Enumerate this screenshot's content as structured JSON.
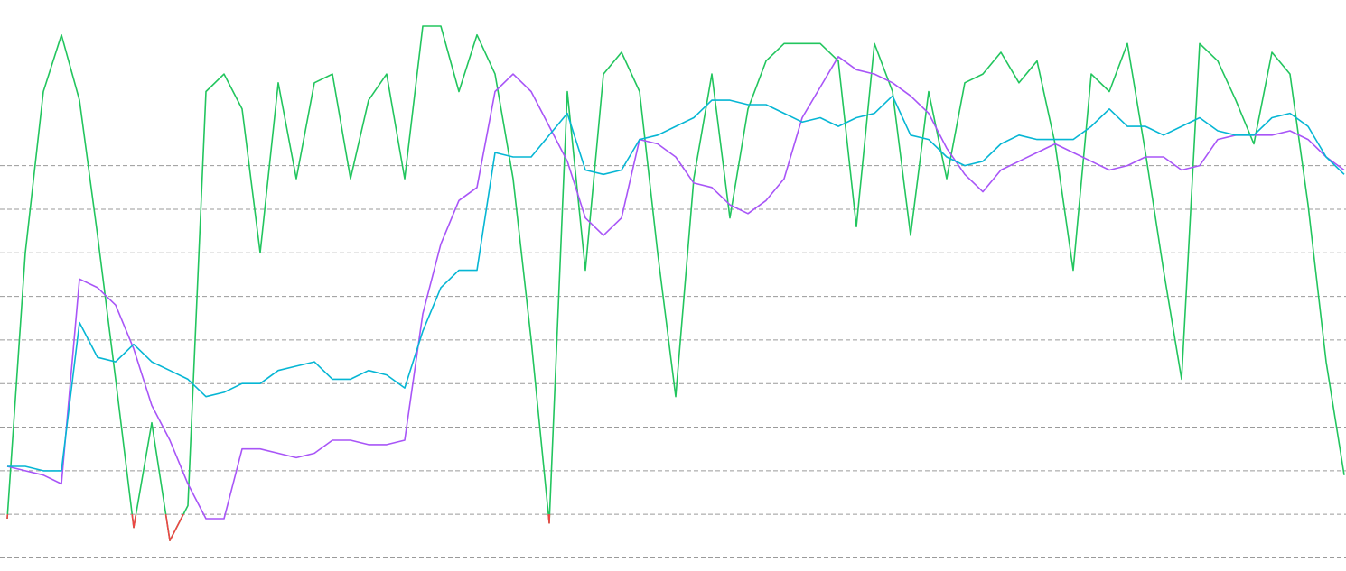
{
  "chart_data": {
    "type": "line",
    "x": [
      0,
      1,
      2,
      3,
      4,
      5,
      6,
      7,
      8,
      9,
      10,
      11,
      12,
      13,
      14,
      15,
      16,
      17,
      18,
      19,
      20,
      21,
      22,
      23,
      24,
      25,
      26,
      27,
      28,
      29,
      30,
      31,
      32,
      33,
      34,
      35,
      36,
      37,
      38,
      39,
      40,
      41,
      42,
      43,
      44,
      45,
      46,
      47,
      48,
      49,
      50,
      51,
      52,
      53,
      54,
      55,
      56,
      57,
      58,
      59,
      60,
      61,
      62,
      63,
      64,
      65,
      66,
      67,
      68,
      69,
      70,
      71,
      72,
      73,
      74
    ],
    "xlim": [
      -0.4,
      74.1
    ],
    "ylim": [
      -1.3,
      11.8
    ],
    "yticks": [
      -1,
      0,
      1,
      2,
      3,
      4,
      5,
      6,
      7,
      8
    ],
    "grid": true,
    "series": [
      {
        "color": "#22c55e",
        "below_zero_color": "#ef4444",
        "values": [
          -0.1,
          6.0,
          9.7,
          11.0,
          9.5,
          6.4,
          3.1,
          -0.3,
          2.1,
          -0.6,
          0.2,
          9.7,
          10.1,
          9.3,
          6.0,
          9.9,
          7.7,
          9.9,
          10.1,
          7.7,
          9.5,
          10.1,
          7.7,
          11.2,
          11.2,
          9.7,
          11.0,
          10.1,
          7.7,
          4.0,
          -0.2,
          9.7,
          5.6,
          10.1,
          10.6,
          9.7,
          6.0,
          2.7,
          7.7,
          10.1,
          6.8,
          9.3,
          10.4,
          10.8,
          10.8,
          10.8,
          10.4,
          6.6,
          10.8,
          9.7,
          6.4,
          9.7,
          7.7,
          9.9,
          10.1,
          10.6,
          9.9,
          10.4,
          8.5,
          5.6,
          10.1,
          9.7,
          10.8,
          8.3,
          5.6,
          3.1,
          10.8,
          10.4,
          9.5,
          8.5,
          10.6,
          10.1,
          7.1,
          3.5,
          0.9
        ]
      },
      {
        "color": "#a855f7",
        "values": [
          1.1,
          1.0,
          0.9,
          0.7,
          5.4,
          5.2,
          4.8,
          3.8,
          2.5,
          1.7,
          0.7,
          -0.1,
          -0.1,
          1.5,
          1.5,
          1.4,
          1.3,
          1.4,
          1.7,
          1.7,
          1.6,
          1.6,
          1.7,
          4.6,
          6.2,
          7.2,
          7.5,
          9.7,
          10.1,
          9.7,
          8.9,
          8.1,
          6.8,
          6.4,
          6.8,
          8.6,
          8.5,
          8.2,
          7.6,
          7.5,
          7.1,
          6.9,
          7.2,
          7.7,
          9.1,
          9.8,
          10.5,
          10.2,
          10.1,
          9.9,
          9.6,
          9.2,
          8.4,
          7.8,
          7.4,
          7.9,
          8.1,
          8.3,
          8.5,
          8.3,
          8.1,
          7.9,
          8.0,
          8.2,
          8.2,
          7.9,
          8.0,
          8.6,
          8.7,
          8.7,
          8.7,
          8.8,
          8.6,
          8.2,
          7.9
        ]
      },
      {
        "color": "#06b6d4",
        "values": [
          1.1,
          1.1,
          1.0,
          1.0,
          4.4,
          3.6,
          3.5,
          3.9,
          3.5,
          3.3,
          3.1,
          2.7,
          2.8,
          3.0,
          3.0,
          3.3,
          3.4,
          3.5,
          3.1,
          3.1,
          3.3,
          3.2,
          2.9,
          4.2,
          5.2,
          5.6,
          5.6,
          8.3,
          8.2,
          8.2,
          8.7,
          9.2,
          7.9,
          7.8,
          7.9,
          8.6,
          8.7,
          8.9,
          9.1,
          9.5,
          9.5,
          9.4,
          9.4,
          9.2,
          9.0,
          9.1,
          8.9,
          9.1,
          9.2,
          9.6,
          8.7,
          8.6,
          8.2,
          8.0,
          8.1,
          8.5,
          8.7,
          8.6,
          8.6,
          8.6,
          8.9,
          9.3,
          8.9,
          8.9,
          8.7,
          8.9,
          9.1,
          8.8,
          8.7,
          8.7,
          9.1,
          9.2,
          8.9,
          8.2,
          7.8
        ]
      }
    ]
  }
}
